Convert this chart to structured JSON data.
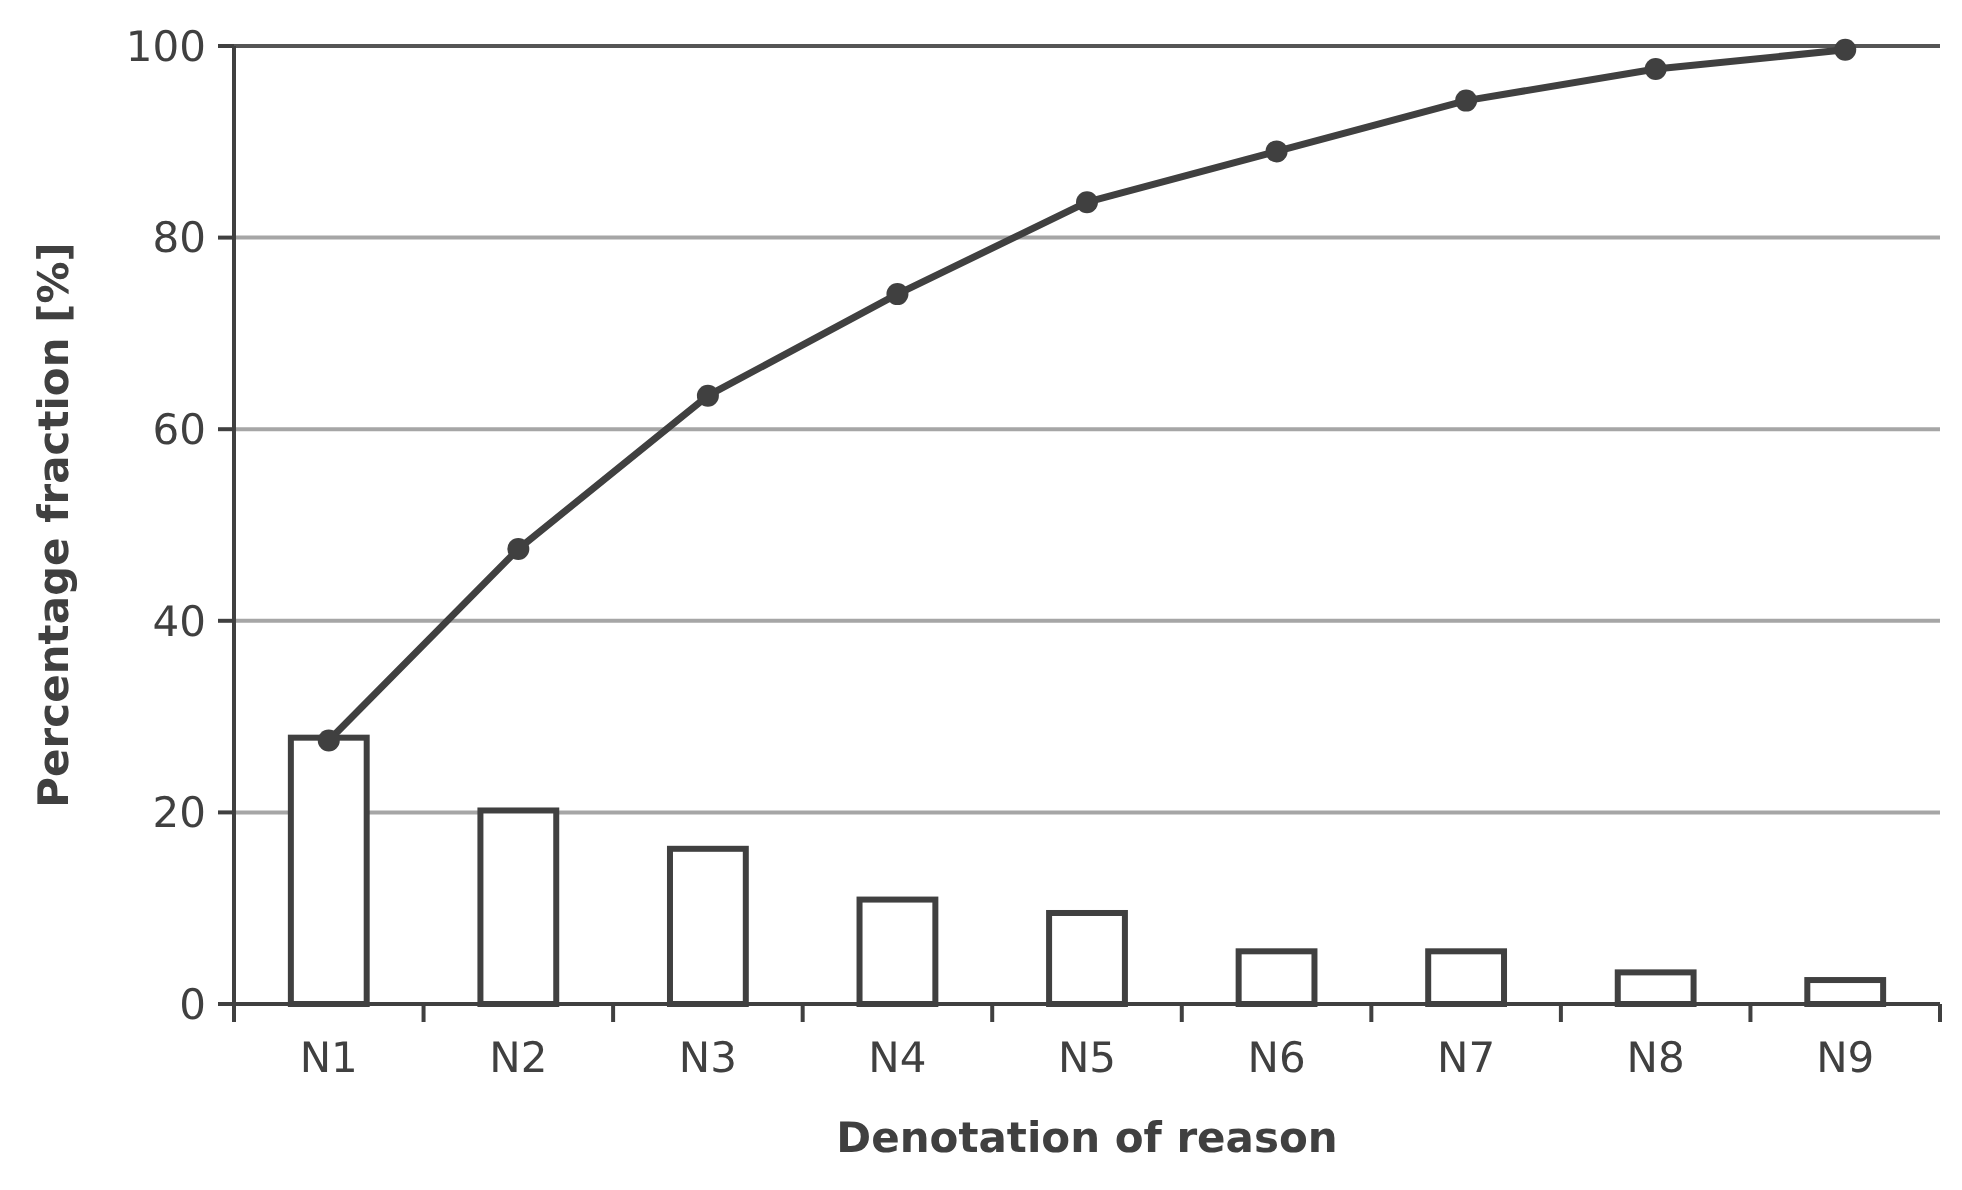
{
  "chart_data": {
    "type": "bar",
    "xlabel": "Denotation of reason",
    "ylabel": "Percentage fraction [%]",
    "categories": [
      "N1",
      "N2",
      "N3",
      "N4",
      "N5",
      "N6",
      "N7",
      "N8",
      "N9"
    ],
    "series": [
      {
        "color": "#ffffff",
        "values": [
          27.8,
          20.2,
          16.2,
          10.9,
          9.5,
          5.5,
          5.5,
          3.3,
          2.5
        ]
      },
      {
        "type": "line",
        "color": "#404040",
        "marker": "circle",
        "values": [
          27.5,
          47.5,
          63.5,
          74.1,
          83.7,
          89,
          94.3,
          97.6,
          99.6
        ]
      }
    ],
    "ylim": [
      0,
      100
    ],
    "yticks": [
      0,
      20,
      40,
      60,
      80,
      100
    ],
    "grid": "y"
  }
}
